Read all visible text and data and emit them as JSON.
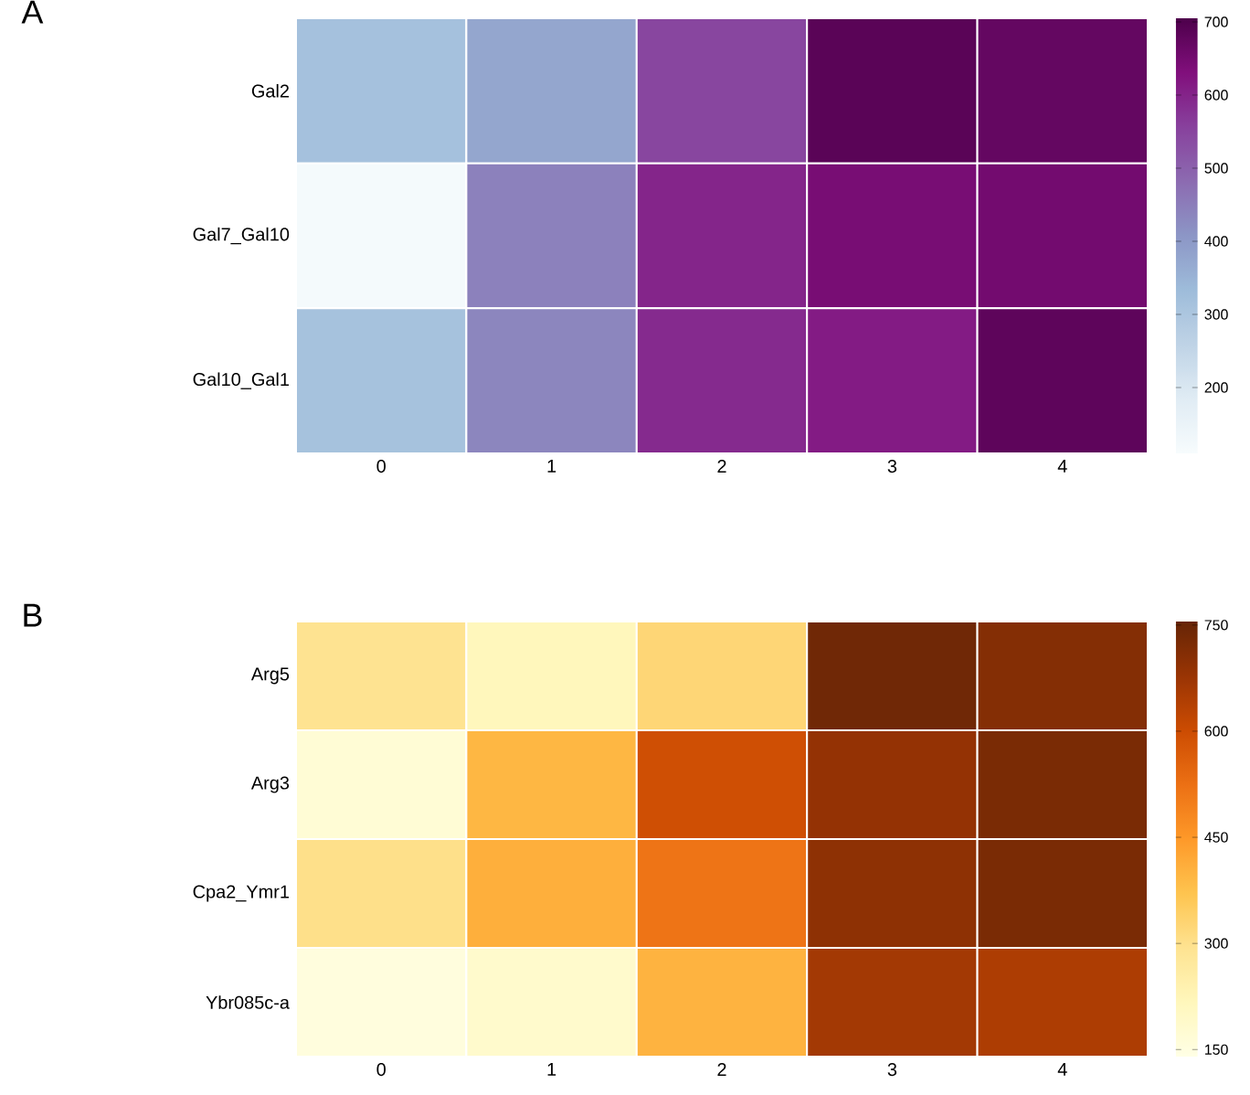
{
  "chart_data": [
    {
      "type": "heatmap",
      "title": "A",
      "categories": [
        "0",
        "1",
        "2",
        "3",
        "4"
      ],
      "y_categories": [
        "Gal2",
        "Gal7_Gal10",
        "Gal10_Gal1"
      ],
      "cells": [
        [
          317,
          376,
          547,
          687,
          672
        ],
        [
          120,
          443,
          598,
          643,
          650
        ],
        [
          315,
          436,
          591,
          613,
          680
        ]
      ],
      "clim": [
        110,
        705
      ],
      "cticks": [
        200,
        300,
        400,
        500,
        600,
        700
      ]
    },
    {
      "type": "heatmap",
      "title": "B",
      "categories": [
        "0",
        "1",
        "2",
        "3",
        "4"
      ],
      "y_categories": [
        "Arg5",
        "Arg3",
        "Cpa2_Ymr1",
        "Ybr085c-a"
      ],
      "cells": [
        [
          294,
          217,
          325,
          740,
          710
        ],
        [
          170,
          394,
          594,
          686,
          725
        ],
        [
          302,
          409,
          517,
          694,
          725
        ],
        [
          155,
          186,
          401,
          663,
          648
        ]
      ],
      "clim": [
        140,
        755
      ],
      "cticks": [
        150,
        300,
        450,
        600,
        750
      ]
    }
  ]
}
